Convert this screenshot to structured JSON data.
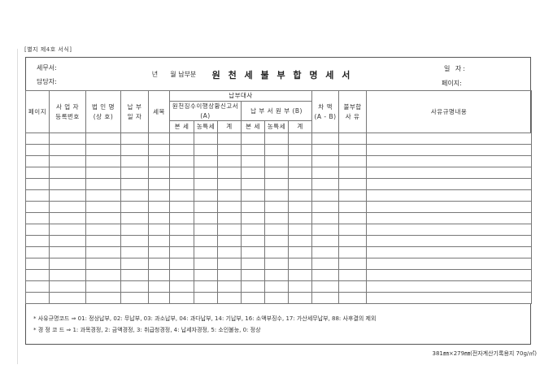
{
  "form_note": "[별지 제4호 서식]",
  "top": {
    "tax_office_label": "세무서:",
    "manager_label": "담당자:",
    "period_label": "년      월 납부분",
    "title": "원 천 세 불 부 합 명 세 서",
    "date_label": "일 자:",
    "page_label": "페이지:"
  },
  "table": {
    "body_row_count": 15,
    "column_count": 14,
    "columns": {
      "page": "페이지",
      "business_reg_no": "사 업 자\n등록번호",
      "corp_name": "법 인 명\n(상 호)",
      "payment_date": "납 부\n일 자",
      "tax_item": "세목",
      "reconciliation_group": "납부대사",
      "withholding_report_a": "원천징수이행상황신고서(A)",
      "payment_slip_b": "납 부 서 원 부 (B)",
      "subcolumns": [
        "본 세",
        "농특세",
        "계",
        "본 세",
        "농특세",
        "계"
      ],
      "difference": "차 액\n(A - B)",
      "mismatch_reason": "불부합\n사 유",
      "reason_detail": "사유규명내용"
    }
  },
  "footnotes": {
    "reason_code_note": "* 사유규명코드 ⇒  01: 정상납부, 02: 무납부, 03: 과소납부, 04: 과다납부, 14: 기납부, 16: 소액부징수, 17: 가산세무납부, 88: 사후결의 제외",
    "correction_code_note": "* 경 정  코 드 ⇒  1: 과목경정, 2: 금액경정, 3: 취급청경정, 4: 납세자경정, 5: 소인불능, 0: 정상"
  },
  "footer": {
    "paper_spec": "381㎜×279㎜(전자계산기록용지 70g/㎡)"
  },
  "colors": {
    "grid_line": "#777777",
    "outer_border": "#555555",
    "text": "#333333",
    "background": "#ffffff"
  }
}
